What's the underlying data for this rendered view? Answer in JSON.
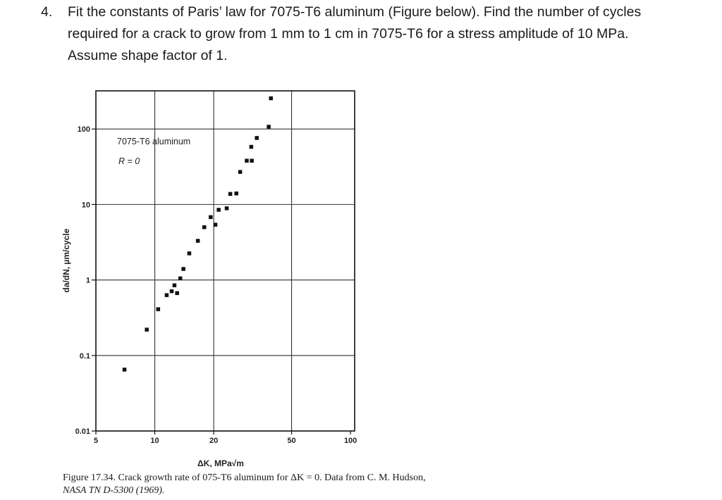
{
  "question": {
    "number": "4.",
    "lines": [
      "Fit the constants of Paris’ law for 7075-T6 aluminum (Figure below). Find the number of cycles",
      "required for a crack to grow from 1 mm to 1 cm in 7075-T6 for a stress amplitude of 10 MPa.",
      "Assume shape factor of 1."
    ]
  },
  "chart_data": {
    "type": "scatter",
    "xlabel": "ΔK, MPa√m",
    "ylabel": "da/dN, µm/cycle",
    "x_scale": "log",
    "y_scale": "log",
    "xlim": [
      5,
      105
    ],
    "ylim": [
      0.01,
      320
    ],
    "x_ticks": [
      {
        "value": 5,
        "label": "5"
      },
      {
        "value": 10,
        "label": "10"
      },
      {
        "value": 20,
        "label": "20"
      },
      {
        "value": 50,
        "label": "50"
      },
      {
        "value": 100,
        "label": "100"
      }
    ],
    "x_gridlines": [
      10,
      20,
      50
    ],
    "y_ticks": [
      {
        "value": 0.01,
        "label": "0.01"
      },
      {
        "value": 0.1,
        "label": "0.1"
      },
      {
        "value": 1,
        "label": "1"
      },
      {
        "value": 10,
        "label": "10"
      },
      {
        "value": 100,
        "label": "100"
      }
    ],
    "y_gridlines": [
      0.1,
      1,
      10,
      100
    ],
    "grid": true,
    "annotations": [
      "7075-T6 aluminum",
      "R = 0"
    ],
    "points": [
      {
        "x": 7.0,
        "y": 0.065
      },
      {
        "x": 9.1,
        "y": 0.22
      },
      {
        "x": 10.4,
        "y": 0.41
      },
      {
        "x": 11.5,
        "y": 0.63
      },
      {
        "x": 12.2,
        "y": 0.71
      },
      {
        "x": 12.6,
        "y": 0.85
      },
      {
        "x": 13.0,
        "y": 0.67
      },
      {
        "x": 13.5,
        "y": 1.05
      },
      {
        "x": 14.0,
        "y": 1.4
      },
      {
        "x": 15.0,
        "y": 2.25
      },
      {
        "x": 16.6,
        "y": 3.3
      },
      {
        "x": 17.9,
        "y": 5.0
      },
      {
        "x": 19.3,
        "y": 6.8
      },
      {
        "x": 20.4,
        "y": 5.4
      },
      {
        "x": 21.2,
        "y": 8.5
      },
      {
        "x": 23.3,
        "y": 8.9
      },
      {
        "x": 24.3,
        "y": 13.8
      },
      {
        "x": 26.1,
        "y": 14.0
      },
      {
        "x": 27.3,
        "y": 27.0
      },
      {
        "x": 29.5,
        "y": 38.0
      },
      {
        "x": 31.3,
        "y": 38.0
      },
      {
        "x": 31.1,
        "y": 58.0
      },
      {
        "x": 33.2,
        "y": 76.0
      },
      {
        "x": 38.2,
        "y": 107.0
      },
      {
        "x": 39.2,
        "y": 255.0
      }
    ]
  },
  "caption": {
    "lines": [
      "Figure 17.34. Crack growth rate of 075-T6 aluminum for ΔK = 0. Data from C. M. Hudson,",
      "NASA TN D-5300 (1969)."
    ]
  }
}
